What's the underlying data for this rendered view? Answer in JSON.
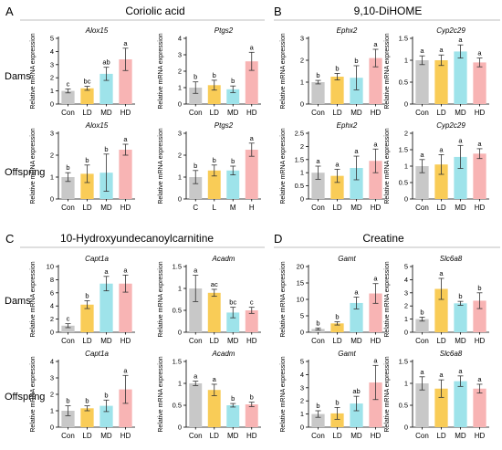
{
  "colors": {
    "Con": "#c8c8c8",
    "LD": "#f9cc57",
    "MD": "#9ee3ea",
    "HD": "#f8b4b4",
    "text": "#000000",
    "separator": "#bfbfbf"
  },
  "rows": {
    "dams": "Dams",
    "offspring": "Offspring"
  },
  "panels": [
    {
      "letter": "A",
      "title": "Coriolic acid"
    },
    {
      "letter": "B",
      "title": "9,10-DiHOME"
    },
    {
      "letter": "C",
      "title": "10-Hydroxyundecanoylcarnitine"
    },
    {
      "letter": "D",
      "title": "Creatine"
    }
  ],
  "ylabel": "Relative mRNA expression",
  "chart_data": [
    {
      "type": "bar",
      "panel": "A",
      "row": "Dams",
      "title": "Alox15",
      "ylabel": "Relative mRNA expression",
      "ylim": [
        0,
        5
      ],
      "yticks": [
        0,
        1,
        2,
        3,
        4,
        5
      ],
      "categories": [
        "Con",
        "LD",
        "MD",
        "HD"
      ],
      "values": [
        1.0,
        1.2,
        2.3,
        3.4
      ],
      "errors": [
        0.15,
        0.15,
        0.5,
        0.85
      ],
      "letters": [
        "c",
        "bc",
        "ab",
        "a"
      ]
    },
    {
      "type": "bar",
      "panel": "A",
      "row": "Dams",
      "title": "Ptgs2",
      "ylabel": "Relative mRNA expression",
      "ylim": [
        0,
        4
      ],
      "yticks": [
        0,
        1,
        2,
        3,
        4
      ],
      "categories": [
        "Con",
        "LD",
        "MD",
        "HD"
      ],
      "values": [
        1.0,
        1.15,
        0.9,
        2.6
      ],
      "errors": [
        0.35,
        0.3,
        0.2,
        0.55
      ],
      "letters": [
        "b",
        "b",
        "b",
        "a"
      ]
    },
    {
      "type": "bar",
      "panel": "A",
      "row": "Offspring",
      "title": "Alox15",
      "ylabel": "Relative mRNA expression",
      "ylim": [
        0,
        3
      ],
      "yticks": [
        0,
        1,
        2,
        3
      ],
      "categories": [
        "Con",
        "LD",
        "MD",
        "HD"
      ],
      "values": [
        1.0,
        1.15,
        1.2,
        2.25
      ],
      "errors": [
        0.2,
        0.4,
        0.85,
        0.25
      ],
      "letters": [
        "b",
        "b",
        "b",
        "a"
      ]
    },
    {
      "type": "bar",
      "panel": "A",
      "row": "Offspring",
      "title": "Ptgs2",
      "ylabel": "Relative mRNA expression",
      "ylim": [
        0,
        3
      ],
      "yticks": [
        0,
        1,
        2,
        3
      ],
      "categories": [
        "C",
        "L",
        "M",
        "H"
      ],
      "values": [
        1.0,
        1.3,
        1.3,
        2.25
      ],
      "errors": [
        0.3,
        0.25,
        0.2,
        0.3
      ],
      "letters": [
        "b",
        "b",
        "b",
        "a"
      ]
    },
    {
      "type": "bar",
      "panel": "B",
      "row": "Dams",
      "title": "Ephx2",
      "ylabel": "Relative mRNA expression",
      "ylim": [
        0,
        3
      ],
      "yticks": [
        0,
        1,
        2,
        3
      ],
      "categories": [
        "Con",
        "LD",
        "MD",
        "HD"
      ],
      "values": [
        1.0,
        1.25,
        1.2,
        2.1
      ],
      "errors": [
        0.08,
        0.15,
        0.55,
        0.4
      ],
      "letters": [
        "b",
        "b",
        "b",
        "a"
      ]
    },
    {
      "type": "bar",
      "panel": "B",
      "row": "Dams",
      "title": "Cyp2c29",
      "ylabel": "Relative mRNA expression",
      "ylim": [
        0,
        1.5
      ],
      "yticks": [
        0,
        0.5,
        1.0,
        1.5
      ],
      "categories": [
        "Con",
        "LD",
        "MD",
        "HD"
      ],
      "values": [
        1.0,
        1.0,
        1.2,
        0.95
      ],
      "errors": [
        0.1,
        0.12,
        0.15,
        0.1
      ],
      "letters": [
        "a",
        "a",
        "a",
        "a"
      ]
    },
    {
      "type": "bar",
      "panel": "B",
      "row": "Offspring",
      "title": "Ephx2",
      "ylabel": "Relative mRNA expression",
      "ylim": [
        0,
        2.5
      ],
      "yticks": [
        0,
        0.5,
        1.0,
        1.5,
        2.0,
        2.5
      ],
      "categories": [
        "Con",
        "LD",
        "MD",
        "HD"
      ],
      "values": [
        1.0,
        0.88,
        1.18,
        1.45
      ],
      "errors": [
        0.25,
        0.25,
        0.45,
        0.45
      ],
      "letters": [
        "a",
        "a",
        "a",
        "a"
      ]
    },
    {
      "type": "bar",
      "panel": "B",
      "row": "Offspring",
      "title": "Cyp2c29",
      "ylabel": "Relative mRNA expression",
      "ylim": [
        0,
        2.0
      ],
      "yticks": [
        0,
        0.5,
        1.0,
        1.5,
        2.0
      ],
      "categories": [
        "Con",
        "LD",
        "MD",
        "HD"
      ],
      "values": [
        1.0,
        1.05,
        1.28,
        1.38
      ],
      "errors": [
        0.2,
        0.3,
        0.35,
        0.15
      ],
      "letters": [
        "a",
        "a",
        "a",
        "a"
      ]
    },
    {
      "type": "bar",
      "panel": "C",
      "row": "Dams",
      "title": "Capt1a",
      "ylabel": "Relative mRNA expression",
      "ylim": [
        0,
        10
      ],
      "yticks": [
        0,
        2,
        4,
        6,
        8,
        10
      ],
      "categories": [
        "Con",
        "LD",
        "MD",
        "HD"
      ],
      "values": [
        1.0,
        4.2,
        7.4,
        7.4
      ],
      "errors": [
        0.3,
        0.6,
        1.1,
        1.3
      ],
      "letters": [
        "c",
        "b",
        "a",
        "a"
      ]
    },
    {
      "type": "bar",
      "panel": "C",
      "row": "Dams",
      "title": "Acadm",
      "ylabel": "Relative mRNA expression",
      "ylim": [
        0,
        1.5
      ],
      "yticks": [
        0,
        0.5,
        1.0,
        1.5
      ],
      "categories": [
        "Con",
        "LD",
        "MD",
        "HD"
      ],
      "values": [
        1.0,
        0.9,
        0.45,
        0.5
      ],
      "errors": [
        0.3,
        0.08,
        0.12,
        0.07
      ],
      "letters": [
        "a",
        "ac",
        "bc",
        "c"
      ]
    },
    {
      "type": "bar",
      "panel": "C",
      "row": "Offspring",
      "title": "Capt1a",
      "ylabel": "Relative mRNA expression",
      "ylim": [
        0,
        4
      ],
      "yticks": [
        0,
        1,
        2,
        3,
        4
      ],
      "categories": [
        "Con",
        "LD",
        "MD",
        "HD"
      ],
      "values": [
        1.0,
        1.15,
        1.3,
        2.3
      ],
      "errors": [
        0.3,
        0.15,
        0.35,
        0.85
      ],
      "letters": [
        "b",
        "b",
        "b",
        "a"
      ]
    },
    {
      "type": "bar",
      "panel": "C",
      "row": "Offspring",
      "title": "Acadm",
      "ylabel": "Relative mRNA expression",
      "ylim": [
        0,
        1.5
      ],
      "yticks": [
        0,
        0.5,
        1.0,
        1.5
      ],
      "categories": [
        "Con",
        "LD",
        "MD",
        "HD"
      ],
      "values": [
        1.0,
        0.85,
        0.5,
        0.52
      ],
      "errors": [
        0.05,
        0.13,
        0.04,
        0.05
      ],
      "letters": [
        "a",
        "a",
        "b",
        "b"
      ]
    },
    {
      "type": "bar",
      "panel": "D",
      "row": "Dams",
      "title": "Gamt",
      "ylabel": "Relative mRNA expression",
      "ylim": [
        0,
        20
      ],
      "yticks": [
        0,
        5,
        10,
        15,
        20
      ],
      "categories": [
        "Con",
        "LD",
        "MD",
        "HD"
      ],
      "values": [
        1.0,
        2.7,
        8.9,
        11.8
      ],
      "errors": [
        0.3,
        0.5,
        1.8,
        3.0
      ],
      "letters": [
        "b",
        "b",
        "a",
        "a"
      ]
    },
    {
      "type": "bar",
      "panel": "D",
      "row": "Dams",
      "title": "Slc6a8",
      "ylabel": "Relative mRNA expression",
      "ylim": [
        0,
        5
      ],
      "yticks": [
        0,
        1,
        2,
        3,
        4,
        5
      ],
      "categories": [
        "Con",
        "LD",
        "MD",
        "HD"
      ],
      "values": [
        1.0,
        3.3,
        2.2,
        2.4
      ],
      "errors": [
        0.15,
        0.8,
        0.15,
        0.6
      ],
      "letters": [
        "b",
        "a",
        "b",
        "b"
      ]
    },
    {
      "type": "bar",
      "panel": "D",
      "row": "Offspring",
      "title": "Gamt",
      "ylabel": "Relative mRNA expression",
      "ylim": [
        0,
        5
      ],
      "yticks": [
        0,
        1,
        2,
        3,
        4,
        5
      ],
      "categories": [
        "Con",
        "LD",
        "MD",
        "HD"
      ],
      "values": [
        1.0,
        1.05,
        1.8,
        3.4
      ],
      "errors": [
        0.25,
        0.45,
        0.55,
        1.3
      ],
      "letters": [
        "b",
        "b",
        "ab",
        "a"
      ]
    },
    {
      "type": "bar",
      "panel": "D",
      "row": "Offspring",
      "title": "Slc6a8",
      "ylabel": "Relative mRNA expression",
      "ylim": [
        0,
        1.5
      ],
      "yticks": [
        0,
        0.5,
        1.0,
        1.5
      ],
      "categories": [
        "Con",
        "LD",
        "MD",
        "HD"
      ],
      "values": [
        1.0,
        0.88,
        1.05,
        0.88
      ],
      "errors": [
        0.15,
        0.2,
        0.12,
        0.1
      ],
      "letters": [
        "a",
        "a",
        "a",
        "a"
      ]
    }
  ]
}
